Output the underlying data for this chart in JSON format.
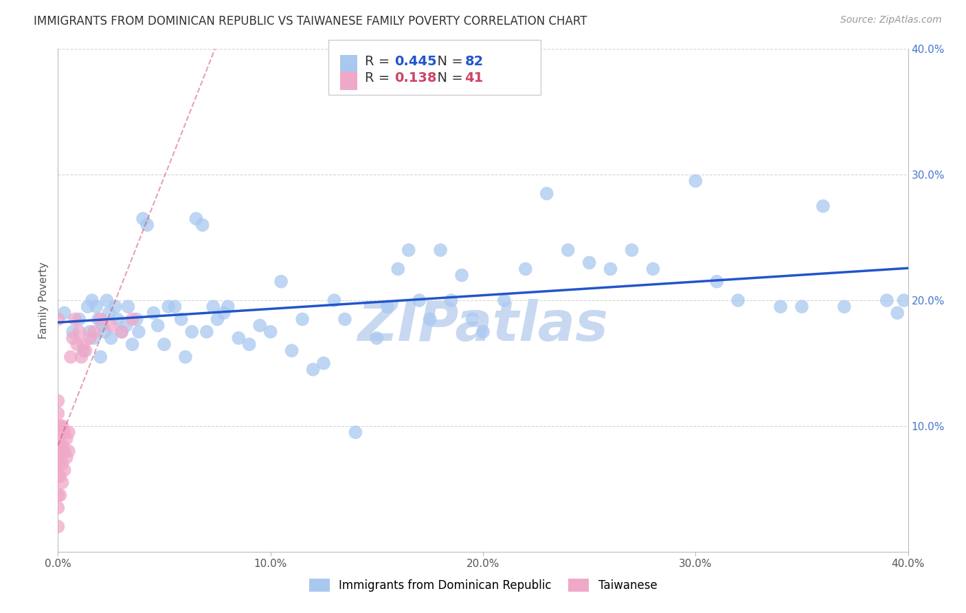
{
  "title": "IMMIGRANTS FROM DOMINICAN REPUBLIC VS TAIWANESE FAMILY POVERTY CORRELATION CHART",
  "source": "Source: ZipAtlas.com",
  "ylabel": "Family Poverty",
  "xlim": [
    0.0,
    0.4
  ],
  "ylim": [
    0.0,
    0.4
  ],
  "xtick_labels": [
    "0.0%",
    "10.0%",
    "20.0%",
    "30.0%",
    "40.0%"
  ],
  "xtick_vals": [
    0.0,
    0.1,
    0.2,
    0.3,
    0.4
  ],
  "ytick_labels": [
    "10.0%",
    "20.0%",
    "30.0%",
    "40.0%"
  ],
  "ytick_vals": [
    0.1,
    0.2,
    0.3,
    0.4
  ],
  "legend_label1": "Immigrants from Dominican Republic",
  "legend_label2": "Taiwanese",
  "R1": 0.445,
  "N1": 82,
  "R2": 0.138,
  "N2": 41,
  "color_blue": "#a8c8f0",
  "color_pink": "#f0a8c8",
  "trendline1_color": "#2255cc",
  "trendline2_color": "#cc4466",
  "background_color": "#ffffff",
  "grid_color": "#cccccc",
  "watermark_color": "#c8d8f0",
  "title_fontsize": 12,
  "axis_label_fontsize": 11,
  "tick_fontsize": 11,
  "scatter1_x": [
    0.003,
    0.007,
    0.01,
    0.012,
    0.014,
    0.015,
    0.016,
    0.017,
    0.018,
    0.019,
    0.02,
    0.021,
    0.022,
    0.023,
    0.024,
    0.025,
    0.027,
    0.028,
    0.03,
    0.032,
    0.033,
    0.035,
    0.037,
    0.038,
    0.04,
    0.042,
    0.045,
    0.047,
    0.05,
    0.052,
    0.055,
    0.058,
    0.06,
    0.063,
    0.065,
    0.068,
    0.07,
    0.073,
    0.075,
    0.078,
    0.08,
    0.085,
    0.09,
    0.095,
    0.1,
    0.105,
    0.11,
    0.115,
    0.12,
    0.125,
    0.13,
    0.135,
    0.14,
    0.15,
    0.155,
    0.16,
    0.165,
    0.17,
    0.175,
    0.18,
    0.185,
    0.19,
    0.195,
    0.2,
    0.21,
    0.22,
    0.23,
    0.24,
    0.25,
    0.26,
    0.27,
    0.28,
    0.3,
    0.31,
    0.32,
    0.34,
    0.35,
    0.36,
    0.37,
    0.39,
    0.395,
    0.398
  ],
  "scatter1_y": [
    0.19,
    0.175,
    0.185,
    0.16,
    0.195,
    0.175,
    0.2,
    0.17,
    0.195,
    0.185,
    0.155,
    0.18,
    0.175,
    0.2,
    0.19,
    0.17,
    0.195,
    0.185,
    0.175,
    0.18,
    0.195,
    0.165,
    0.185,
    0.175,
    0.265,
    0.26,
    0.19,
    0.18,
    0.165,
    0.195,
    0.195,
    0.185,
    0.155,
    0.175,
    0.265,
    0.26,
    0.175,
    0.195,
    0.185,
    0.19,
    0.195,
    0.17,
    0.165,
    0.18,
    0.175,
    0.215,
    0.16,
    0.185,
    0.145,
    0.15,
    0.2,
    0.185,
    0.095,
    0.17,
    0.195,
    0.225,
    0.24,
    0.2,
    0.185,
    0.24,
    0.2,
    0.22,
    0.185,
    0.175,
    0.2,
    0.225,
    0.285,
    0.24,
    0.23,
    0.225,
    0.24,
    0.225,
    0.295,
    0.215,
    0.2,
    0.195,
    0.195,
    0.275,
    0.195,
    0.2,
    0.19,
    0.2
  ],
  "scatter2_x": [
    0.0,
    0.0,
    0.0,
    0.0,
    0.0,
    0.0,
    0.0,
    0.0,
    0.0,
    0.0,
    0.0,
    0.001,
    0.001,
    0.001,
    0.001,
    0.001,
    0.002,
    0.002,
    0.002,
    0.002,
    0.003,
    0.003,
    0.003,
    0.004,
    0.004,
    0.005,
    0.005,
    0.006,
    0.007,
    0.008,
    0.009,
    0.01,
    0.011,
    0.012,
    0.013,
    0.015,
    0.017,
    0.02,
    0.025,
    0.03,
    0.035
  ],
  "scatter2_y": [
    0.02,
    0.035,
    0.045,
    0.06,
    0.07,
    0.08,
    0.09,
    0.1,
    0.11,
    0.12,
    0.185,
    0.045,
    0.06,
    0.075,
    0.085,
    0.1,
    0.055,
    0.07,
    0.085,
    0.1,
    0.065,
    0.08,
    0.095,
    0.075,
    0.09,
    0.08,
    0.095,
    0.155,
    0.17,
    0.185,
    0.165,
    0.175,
    0.155,
    0.165,
    0.16,
    0.17,
    0.175,
    0.185,
    0.18,
    0.175,
    0.185
  ]
}
